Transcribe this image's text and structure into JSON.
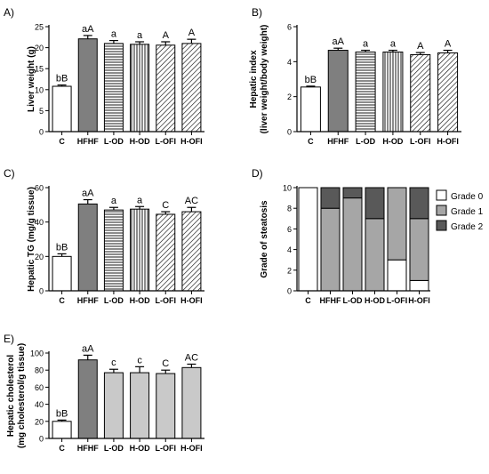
{
  "colors": {
    "hfhf": "#7f7f7f",
    "light": "#c9c9c9",
    "grade0": "#ffffff",
    "grade1": "#a6a6a6",
    "grade2": "#595959"
  },
  "chart_data": [
    {
      "panel": "A)",
      "type": "bar",
      "ylabel": "Liver weight (g)",
      "categories": [
        "C",
        "HFHF",
        "L-OD",
        "H-OD",
        "L-OFI",
        "H-OFI"
      ],
      "values": [
        10.8,
        22.1,
        21.0,
        20.8,
        20.6,
        21.0
      ],
      "errors": [
        0.3,
        0.8,
        0.7,
        0.6,
        0.8,
        1.0
      ],
      "labels": [
        "bB",
        "aA",
        "a",
        "a",
        "A",
        "A"
      ],
      "patterns": [
        "white",
        "solid-dark",
        "hstripe",
        "vstripe",
        "diag",
        "diag"
      ],
      "ylim": [
        0,
        25
      ],
      "yticks": [
        0,
        5,
        10,
        15,
        20,
        25
      ]
    },
    {
      "panel": "B)",
      "type": "bar",
      "ylabel": [
        "Hepatic index",
        "(liver weight/body weight)"
      ],
      "categories": [
        "C",
        "HFHF",
        "L-OD",
        "H-OD",
        "L-OFI",
        "H-OFI"
      ],
      "values": [
        2.55,
        4.65,
        4.55,
        4.55,
        4.4,
        4.5
      ],
      "errors": [
        0.05,
        0.12,
        0.1,
        0.1,
        0.12,
        0.15
      ],
      "labels": [
        "bB",
        "aA",
        "a",
        "a",
        "A",
        "A"
      ],
      "patterns": [
        "white",
        "solid-dark",
        "hstripe",
        "vstripe",
        "diag",
        "diag"
      ],
      "ylim": [
        0,
        6
      ],
      "yticks": [
        0,
        2,
        4,
        6
      ]
    },
    {
      "panel": "C)",
      "type": "bar",
      "ylabel": "Hepatic TG (mg/g tissue)",
      "categories": [
        "C",
        "HFHF",
        "L-OD",
        "H-OD",
        "L-OFI",
        "H-OFI"
      ],
      "values": [
        20,
        50.5,
        47,
        47.5,
        44.5,
        46
      ],
      "errors": [
        1.5,
        2.5,
        1.5,
        1.5,
        1.5,
        2.5
      ],
      "labels": [
        "bB",
        "aA",
        "a",
        "a",
        "C",
        "AC"
      ],
      "patterns": [
        "white",
        "solid-dark",
        "hstripe",
        "vstripe",
        "diag",
        "diag"
      ],
      "ylim": [
        0,
        60
      ],
      "yticks": [
        0,
        20,
        40,
        60
      ]
    },
    {
      "panel": "D)",
      "type": "stacked-bar",
      "ylabel": "Grade of steatosis",
      "categories": [
        "C",
        "HFHF",
        "L-OD",
        "H-OD",
        "L-OFI",
        "H-OFI"
      ],
      "series": [
        {
          "name": "Grade 0",
          "values": [
            10,
            0,
            0,
            0,
            3,
            1
          ]
        },
        {
          "name": "Grade 1",
          "values": [
            0,
            8,
            9,
            7,
            7,
            6
          ]
        },
        {
          "name": "Grade 2",
          "values": [
            0,
            2,
            1,
            3,
            0,
            3
          ]
        }
      ],
      "ylim": [
        0,
        10
      ],
      "yticks": [
        0,
        2,
        4,
        6,
        8,
        10
      ],
      "legend": "right"
    },
    {
      "panel": "E)",
      "type": "bar",
      "ylabel": [
        "Hepatic cholesterol",
        "(mg cholesterol/g tissue)"
      ],
      "categories": [
        "C",
        "HFHF",
        "L-OD",
        "H-OD",
        "L-OFI",
        "H-OFI"
      ],
      "values": [
        20,
        92,
        77,
        77,
        76,
        83
      ],
      "errors": [
        1.5,
        5.5,
        4,
        7,
        4,
        4
      ],
      "labels": [
        "bB",
        "aA",
        "c",
        "c",
        "C",
        "AC"
      ],
      "patterns": [
        "white",
        "solid-dark",
        "solid-light",
        "solid-light",
        "solid-light",
        "solid-light"
      ],
      "ylim": [
        0,
        100
      ],
      "yticks": [
        0,
        20,
        40,
        60,
        80,
        100
      ]
    }
  ]
}
